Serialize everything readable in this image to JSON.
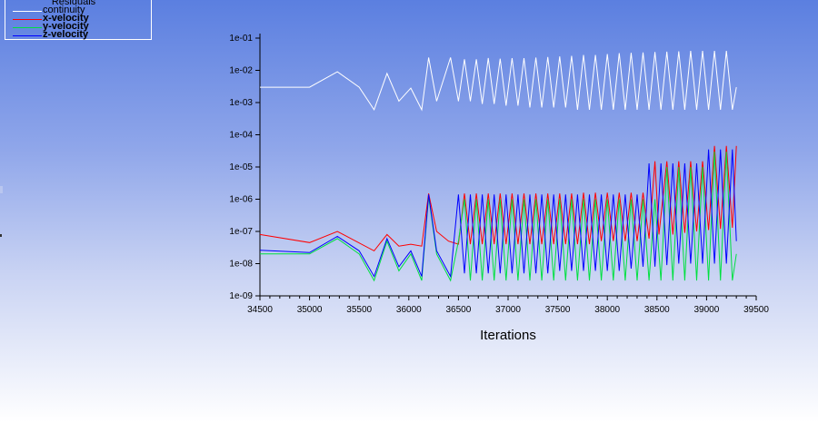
{
  "chart_data": {
    "type": "line",
    "title": "",
    "xlabel": "Iterations",
    "ylabel": "",
    "xlim": [
      34500,
      39500
    ],
    "ylim": [
      1e-09,
      0.1
    ],
    "yscale": "log",
    "legend": {
      "title": "Residuals",
      "placement": "top-left",
      "entries": [
        "continuity",
        "x-velocity",
        "y-velocity",
        "z-velocity"
      ]
    },
    "x_ticks": [
      "34500",
      "35000",
      "35500",
      "36000",
      "36500",
      "37000",
      "37500",
      "38000",
      "38500",
      "39000",
      "39500"
    ],
    "y_ticks": [
      "1e-09",
      "1e-08",
      "1e-07",
      "1e-06",
      "1e-05",
      "1e-04",
      "1e-03",
      "1e-02",
      "1e-01"
    ],
    "series": [
      {
        "name": "continuity",
        "color": "#ffffff",
        "x": [
          34500,
          35000,
          35280,
          35500,
          35650,
          35780,
          35900,
          36020,
          36130,
          36200,
          36280,
          36420,
          36500,
          36560,
          36620,
          36680,
          36740,
          36800,
          36860,
          36920,
          36980,
          37040,
          37100,
          37160,
          37220,
          37280,
          37340,
          37400,
          37460,
          37520,
          37580,
          37640,
          37700,
          37760,
          37820,
          37880,
          37940,
          38000,
          38060,
          38120,
          38180,
          38240,
          38300,
          38360,
          38420,
          38480,
          38540,
          38600,
          38660,
          38720,
          38780,
          38840,
          38900,
          38960,
          39020,
          39080,
          39140,
          39200,
          39260,
          39300
        ],
        "y": [
          0.003,
          0.003,
          0.009,
          0.003,
          0.0006,
          0.008,
          0.0011,
          0.0028,
          0.0006,
          0.025,
          0.0011,
          0.025,
          0.0011,
          0.022,
          0.0011,
          0.022,
          0.0009,
          0.024,
          0.0009,
          0.023,
          0.0008,
          0.024,
          0.0008,
          0.024,
          0.0007,
          0.025,
          0.0007,
          0.026,
          0.0007,
          0.027,
          0.0007,
          0.028,
          0.0006,
          0.03,
          0.0006,
          0.03,
          0.0006,
          0.032,
          0.0006,
          0.034,
          0.0006,
          0.035,
          0.0006,
          0.036,
          0.0006,
          0.037,
          0.0006,
          0.038,
          0.0006,
          0.039,
          0.0006,
          0.04,
          0.0006,
          0.04,
          0.0006,
          0.04,
          0.0006,
          0.04,
          0.0006,
          0.003
        ]
      },
      {
        "name": "x-velocity",
        "color": "#ff0000",
        "x": [
          34500,
          35000,
          35280,
          35650,
          35780,
          35900,
          36020,
          36130,
          36200,
          36280,
          36400,
          36500,
          36560,
          36620,
          36680,
          36740,
          36800,
          36860,
          36920,
          36980,
          37040,
          37100,
          37160,
          37220,
          37280,
          37340,
          37400,
          37460,
          37520,
          37580,
          37640,
          37700,
          37760,
          37820,
          37880,
          37940,
          38000,
          38060,
          38120,
          38180,
          38240,
          38300,
          38360,
          38420,
          38480,
          38520,
          38600,
          38660,
          38720,
          38780,
          38840,
          38900,
          38960,
          39020,
          39080,
          39140,
          39200,
          39260,
          39300
        ],
        "y": [
          8e-08,
          4.5e-08,
          1e-07,
          2.5e-08,
          8e-08,
          3.5e-08,
          4e-08,
          3.5e-08,
          1.5e-06,
          1e-07,
          5e-08,
          4e-08,
          1.5e-06,
          4e-08,
          1.5e-06,
          4e-08,
          1.5e-06,
          4e-08,
          1.5e-06,
          4e-08,
          1.5e-06,
          4e-08,
          1.5e-06,
          4e-08,
          1.5e-06,
          4e-08,
          1.5e-06,
          4e-08,
          1.5e-06,
          4e-08,
          1.5e-06,
          4e-08,
          1.6e-06,
          4e-08,
          1.6e-06,
          5e-08,
          1.6e-06,
          5e-08,
          1.6e-06,
          5e-08,
          1.6e-06,
          5e-08,
          1.6e-06,
          6e-08,
          1.5e-05,
          8e-08,
          1.5e-05,
          8e-08,
          1.5e-05,
          9e-08,
          1.5e-05,
          1e-07,
          1.5e-05,
          1.1e-07,
          4.5e-05,
          1.2e-07,
          4.5e-05,
          1.3e-07,
          4.5e-05
        ]
      },
      {
        "name": "y-velocity",
        "color": "#00e040",
        "x": [
          34500,
          35000,
          35280,
          35500,
          35650,
          35780,
          35900,
          36020,
          36130,
          36200,
          36280,
          36420,
          36500,
          36560,
          36620,
          36680,
          36740,
          36800,
          36860,
          36920,
          36980,
          37040,
          37100,
          37160,
          37220,
          37280,
          37340,
          37400,
          37460,
          37520,
          37580,
          37640,
          37700,
          37760,
          37820,
          37880,
          37940,
          38000,
          38060,
          38120,
          38180,
          38240,
          38300,
          38360,
          38420,
          38480,
          38540,
          38600,
          38660,
          38720,
          38780,
          38840,
          38900,
          38960,
          39020,
          39080,
          39140,
          39200,
          39260,
          39300
        ],
        "y": [
          2e-08,
          2e-08,
          6e-08,
          2e-08,
          3e-09,
          5e-08,
          6e-09,
          2e-08,
          3e-09,
          1.2e-06,
          2e-08,
          3e-09,
          5e-08,
          1e-06,
          3e-09,
          1e-06,
          3e-09,
          1e-06,
          3e-09,
          1e-06,
          3e-09,
          1e-06,
          3e-09,
          1e-06,
          3e-09,
          1e-06,
          3e-09,
          1e-06,
          3e-09,
          1e-06,
          3e-09,
          1e-06,
          3e-09,
          1e-06,
          3e-09,
          1e-06,
          3e-09,
          1e-06,
          3e-09,
          1e-06,
          3e-09,
          1e-06,
          3e-09,
          1e-06,
          3e-09,
          1e-06,
          3e-09,
          1e-05,
          3e-09,
          1e-05,
          3e-09,
          1e-05,
          3e-09,
          1e-05,
          3e-09,
          3e-05,
          3e-09,
          3e-05,
          3e-09,
          2e-08
        ]
      },
      {
        "name": "z-velocity",
        "color": "#0000ff",
        "x": [
          34500,
          35000,
          35280,
          35500,
          35650,
          35780,
          35900,
          36020,
          36130,
          36200,
          36280,
          36420,
          36500,
          36560,
          36620,
          36680,
          36740,
          36800,
          36860,
          36920,
          36980,
          37040,
          37100,
          37160,
          37220,
          37280,
          37340,
          37400,
          37460,
          37520,
          37580,
          37640,
          37700,
          37760,
          37820,
          37880,
          37940,
          38000,
          38060,
          38120,
          38180,
          38240,
          38300,
          38360,
          38420,
          38480,
          38540,
          38600,
          38660,
          38720,
          38780,
          38840,
          38900,
          38960,
          39020,
          39080,
          39140,
          39200,
          39260,
          39300
        ],
        "y": [
          2.6e-08,
          2.2e-08,
          7e-08,
          2.5e-08,
          4e-09,
          6e-08,
          8e-09,
          2.5e-08,
          4e-09,
          1.4e-06,
          2.5e-08,
          4e-09,
          1.4e-06,
          5e-09,
          1.4e-06,
          5e-09,
          1.4e-06,
          5e-09,
          1.4e-06,
          5e-09,
          1.4e-06,
          5e-09,
          1.4e-06,
          5e-09,
          1.4e-06,
          5e-09,
          1.4e-06,
          5e-09,
          1.4e-06,
          6e-09,
          1.4e-06,
          6e-09,
          1.4e-06,
          6e-09,
          1.4e-06,
          6e-09,
          1.4e-06,
          6e-09,
          1.4e-06,
          6e-09,
          1.4e-06,
          7e-09,
          1.4e-06,
          8e-09,
          1.3e-05,
          8e-09,
          1.3e-05,
          9e-09,
          1.3e-05,
          1e-08,
          1.3e-05,
          1e-08,
          1.3e-05,
          1e-08,
          3.5e-05,
          1e-08,
          3.5e-05,
          1e-08,
          3.5e-05,
          5e-08
        ]
      }
    ]
  }
}
